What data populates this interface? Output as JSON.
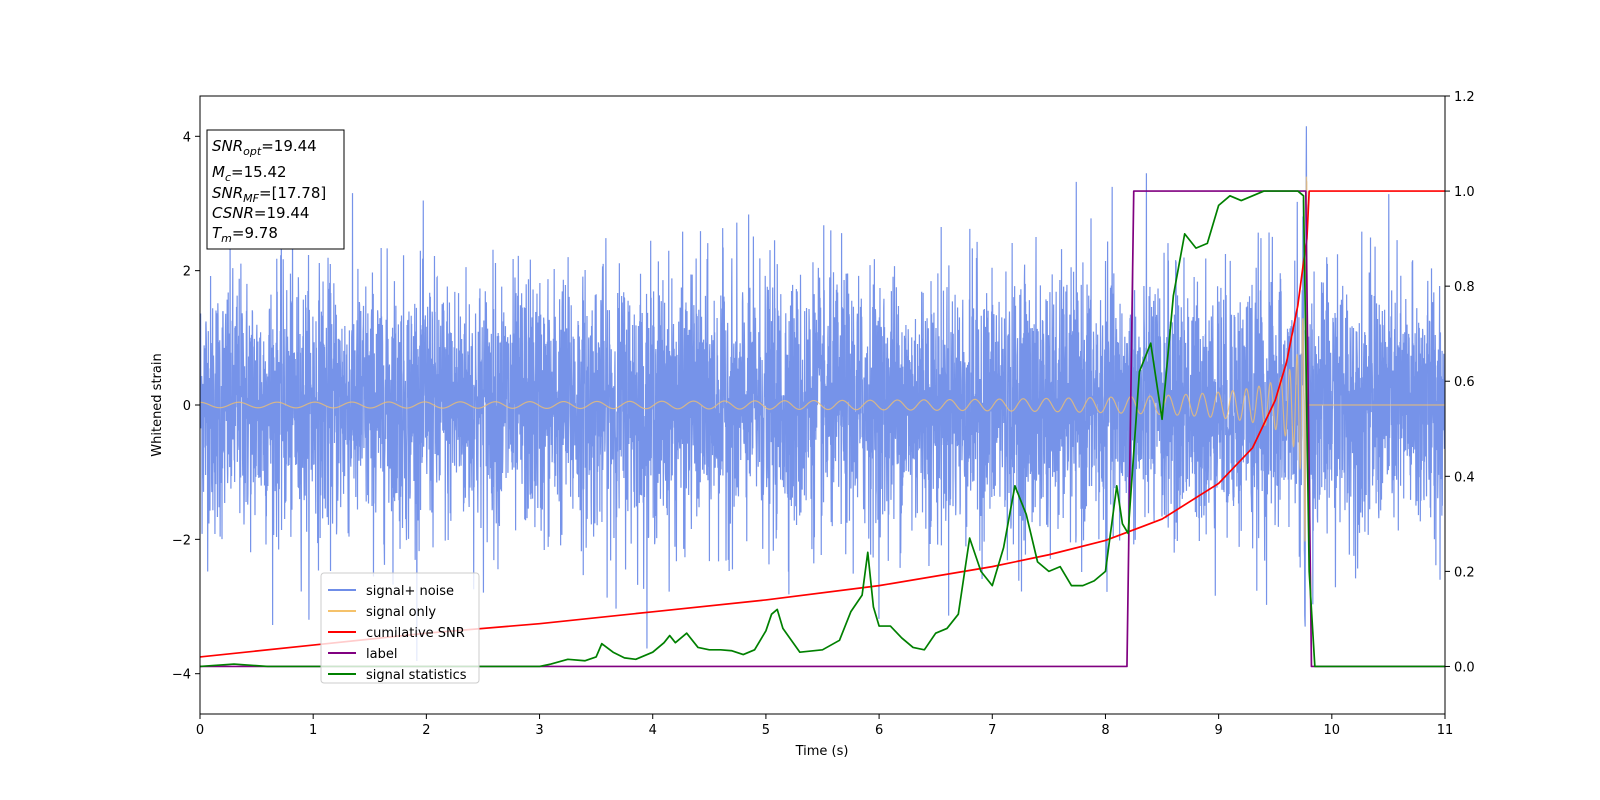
{
  "chart_data": {
    "type": "line",
    "title": "",
    "xlabel": "Time (s)",
    "ylabel": "Whitened strain",
    "xlim": [
      0,
      11
    ],
    "ylim": [
      -4.6,
      4.6
    ],
    "y2lim": [
      -0.1,
      1.2
    ],
    "xticks": [
      0,
      1,
      2,
      3,
      4,
      5,
      6,
      7,
      8,
      9,
      10,
      11
    ],
    "yticks": [
      -4,
      -2,
      0,
      2,
      4
    ],
    "y2ticks": [
      0.0,
      0.2,
      0.4,
      0.6,
      0.8,
      1.0,
      1.2
    ],
    "xtick_labels": [
      "0",
      "1",
      "2",
      "3",
      "4",
      "5",
      "6",
      "7",
      "8",
      "9",
      "10",
      "11"
    ],
    "ytick_labels": [
      "−4",
      "−2",
      "0",
      "2",
      "4"
    ],
    "y2tick_labels": [
      "0.0",
      "0.2",
      "0.4",
      "0.6",
      "0.8",
      "1.0",
      "1.2"
    ],
    "grid": false,
    "legend_position": "lower-left",
    "legend": [
      "signal+ noise",
      "signal only",
      "cumilative SNR",
      "label",
      "signal statistics"
    ],
    "colors": {
      "signal_noise": "#6f8de8",
      "signal_only": "#f5c26b",
      "cumulative_snr": "#ff0000",
      "label": "#800080",
      "signal_statistics": "#008000"
    },
    "annotation": [
      {
        "sym": "SNR",
        "sub": "opt",
        "text": "=19.44"
      },
      {
        "sym": "M",
        "sub": "c",
        "text": "=15.42"
      },
      {
        "sym": "SNR",
        "sub": "MF",
        "text": "=[17.78]"
      },
      {
        "sym": "CSNR",
        "sub": "",
        "text": "=19.44"
      },
      {
        "sym": "T",
        "sub": "m",
        "text": "=9.78"
      }
    ],
    "series": [
      {
        "name": "signal+ noise",
        "axis": "left",
        "style": "noise",
        "envelope": {
          "typical_peak": 2.5,
          "max_peak": 4.15,
          "min_trough": -4.2
        }
      },
      {
        "name": "signal only",
        "axis": "left",
        "style": "chirp",
        "chirp": {
          "t_merge": 9.78,
          "amp_start": 0.04,
          "amp_end": 3.4
        }
      },
      {
        "name": "cumilative SNR",
        "axis": "right",
        "x": [
          0,
          1,
          2,
          3,
          4,
          5,
          6,
          7,
          7.5,
          8,
          8.5,
          9,
          9.3,
          9.5,
          9.6,
          9.7,
          9.75,
          9.78,
          9.8,
          11
        ],
        "y": [
          0.02,
          0.045,
          0.07,
          0.09,
          0.115,
          0.14,
          0.17,
          0.21,
          0.235,
          0.265,
          0.31,
          0.385,
          0.46,
          0.56,
          0.64,
          0.76,
          0.85,
          0.9,
          1.0,
          1.0
        ]
      },
      {
        "name": "label",
        "axis": "right",
        "x": [
          0,
          8.19,
          8.25,
          9.77,
          9.82,
          11
        ],
        "y": [
          0.0,
          0.0,
          1.0,
          1.0,
          0.0,
          0.0
        ]
      },
      {
        "name": "signal statistics",
        "axis": "right",
        "x": [
          0,
          0.3,
          0.6,
          1.0,
          1.5,
          2.0,
          2.5,
          3.0,
          3.1,
          3.25,
          3.4,
          3.5,
          3.55,
          3.65,
          3.75,
          3.85,
          4.0,
          4.1,
          4.15,
          4.2,
          4.3,
          4.4,
          4.5,
          4.6,
          4.7,
          4.8,
          4.9,
          5.0,
          5.05,
          5.1,
          5.15,
          5.3,
          5.5,
          5.65,
          5.75,
          5.85,
          5.9,
          5.95,
          6.0,
          6.1,
          6.2,
          6.3,
          6.4,
          6.5,
          6.6,
          6.7,
          6.8,
          6.9,
          7.0,
          7.1,
          7.2,
          7.3,
          7.4,
          7.5,
          7.6,
          7.7,
          7.8,
          7.9,
          8.0,
          8.1,
          8.15,
          8.2,
          8.25,
          8.3,
          8.4,
          8.5,
          8.6,
          8.7,
          8.8,
          8.9,
          9.0,
          9.1,
          9.2,
          9.3,
          9.4,
          9.5,
          9.6,
          9.7,
          9.75,
          9.8,
          9.85,
          9.9,
          10.0,
          10.5,
          11.0
        ],
        "y": [
          0.0,
          0.005,
          0.0,
          0.0,
          0.0,
          0.0,
          0.0,
          0.0,
          0.005,
          0.015,
          0.012,
          0.02,
          0.048,
          0.03,
          0.018,
          0.015,
          0.03,
          0.05,
          0.065,
          0.05,
          0.07,
          0.04,
          0.035,
          0.035,
          0.033,
          0.025,
          0.035,
          0.075,
          0.11,
          0.12,
          0.08,
          0.03,
          0.035,
          0.055,
          0.115,
          0.15,
          0.24,
          0.125,
          0.085,
          0.085,
          0.06,
          0.04,
          0.035,
          0.07,
          0.08,
          0.11,
          0.27,
          0.2,
          0.17,
          0.25,
          0.38,
          0.32,
          0.22,
          0.2,
          0.21,
          0.17,
          0.17,
          0.18,
          0.2,
          0.38,
          0.3,
          0.28,
          0.45,
          0.62,
          0.68,
          0.52,
          0.78,
          0.91,
          0.88,
          0.89,
          0.97,
          0.99,
          0.98,
          0.99,
          1.0,
          1.0,
          1.0,
          1.0,
          0.99,
          0.2,
          0.0,
          0.0,
          0.0,
          0.0,
          0.0
        ]
      }
    ]
  }
}
